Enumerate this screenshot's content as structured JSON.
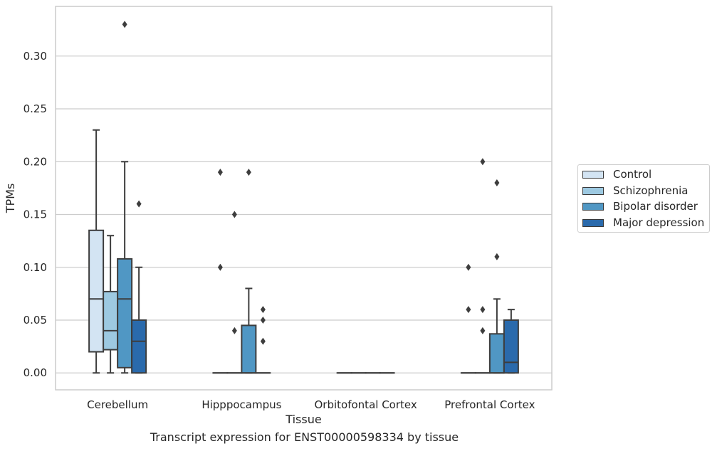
{
  "chart_data": {
    "type": "box",
    "title": "Transcript expression for ENST00000598334 by tissue",
    "xlabel": "Tissue",
    "ylabel": "TPMs",
    "ylim": [
      -0.016,
      0.347
    ],
    "yticks": [
      "0.00",
      "0.05",
      "0.10",
      "0.15",
      "0.20",
      "0.25",
      "0.30"
    ],
    "grid": "horizontal",
    "legend_position": "right",
    "categories": [
      "Cerebellum",
      "Hipppocampus",
      "Orbitofontal Cortex",
      "Prefrontal Cortex"
    ],
    "series": [
      {
        "name": "Control",
        "color": "#d3e4f3",
        "boxes": [
          {
            "whislo": 0.0,
            "q1": 0.02,
            "med": 0.07,
            "q3": 0.135,
            "whishi": 0.23,
            "fliers": []
          },
          {
            "whislo": 0.0,
            "q1": 0.0,
            "med": 0.0,
            "q3": 0.0,
            "whishi": 0.0,
            "fliers": [
              0.19,
              0.1
            ]
          },
          {
            "whislo": 0.0,
            "q1": 0.0,
            "med": 0.0,
            "q3": 0.0,
            "whishi": 0.0,
            "fliers": []
          },
          {
            "whislo": 0.0,
            "q1": 0.0,
            "med": 0.0,
            "q3": 0.0,
            "whishi": 0.0,
            "fliers": [
              0.1,
              0.06
            ]
          }
        ]
      },
      {
        "name": "Schizophrenia",
        "color": "#9dc9e1",
        "boxes": [
          {
            "whislo": 0.0,
            "q1": 0.022,
            "med": 0.04,
            "q3": 0.077,
            "whishi": 0.13,
            "fliers": []
          },
          {
            "whislo": 0.0,
            "q1": 0.0,
            "med": 0.0,
            "q3": 0.0,
            "whishi": 0.0,
            "fliers": [
              0.15,
              0.04
            ]
          },
          {
            "whislo": 0.0,
            "q1": 0.0,
            "med": 0.0,
            "q3": 0.0,
            "whishi": 0.0,
            "fliers": []
          },
          {
            "whislo": 0.0,
            "q1": 0.0,
            "med": 0.0,
            "q3": 0.0,
            "whishi": 0.0,
            "fliers": [
              0.2,
              0.06,
              0.04
            ]
          }
        ]
      },
      {
        "name": "Bipolar disorder",
        "color": "#5097c4",
        "boxes": [
          {
            "whislo": 0.0,
            "q1": 0.005,
            "med": 0.07,
            "q3": 0.108,
            "whishi": 0.2,
            "fliers": [
              0.33
            ]
          },
          {
            "whislo": 0.0,
            "q1": 0.0,
            "med": 0.0,
            "q3": 0.045,
            "whishi": 0.08,
            "fliers": [
              0.19
            ]
          },
          {
            "whislo": 0.0,
            "q1": 0.0,
            "med": 0.0,
            "q3": 0.0,
            "whishi": 0.0,
            "fliers": []
          },
          {
            "whislo": 0.0,
            "q1": 0.0,
            "med": 0.0,
            "q3": 0.037,
            "whishi": 0.07,
            "fliers": [
              0.18,
              0.11
            ]
          }
        ]
      },
      {
        "name": "Major depression",
        "color": "#2a6aac",
        "boxes": [
          {
            "whislo": 0.0,
            "q1": 0.0,
            "med": 0.03,
            "q3": 0.05,
            "whishi": 0.1,
            "fliers": [
              0.16
            ]
          },
          {
            "whislo": 0.0,
            "q1": 0.0,
            "med": 0.0,
            "q3": 0.0,
            "whishi": 0.0,
            "fliers": [
              0.06,
              0.05,
              0.03
            ]
          },
          {
            "whislo": 0.0,
            "q1": 0.0,
            "med": 0.0,
            "q3": 0.0,
            "whishi": 0.0,
            "fliers": []
          },
          {
            "whislo": 0.0,
            "q1": 0.0,
            "med": 0.01,
            "q3": 0.05,
            "whishi": 0.06,
            "fliers": []
          }
        ]
      }
    ]
  }
}
